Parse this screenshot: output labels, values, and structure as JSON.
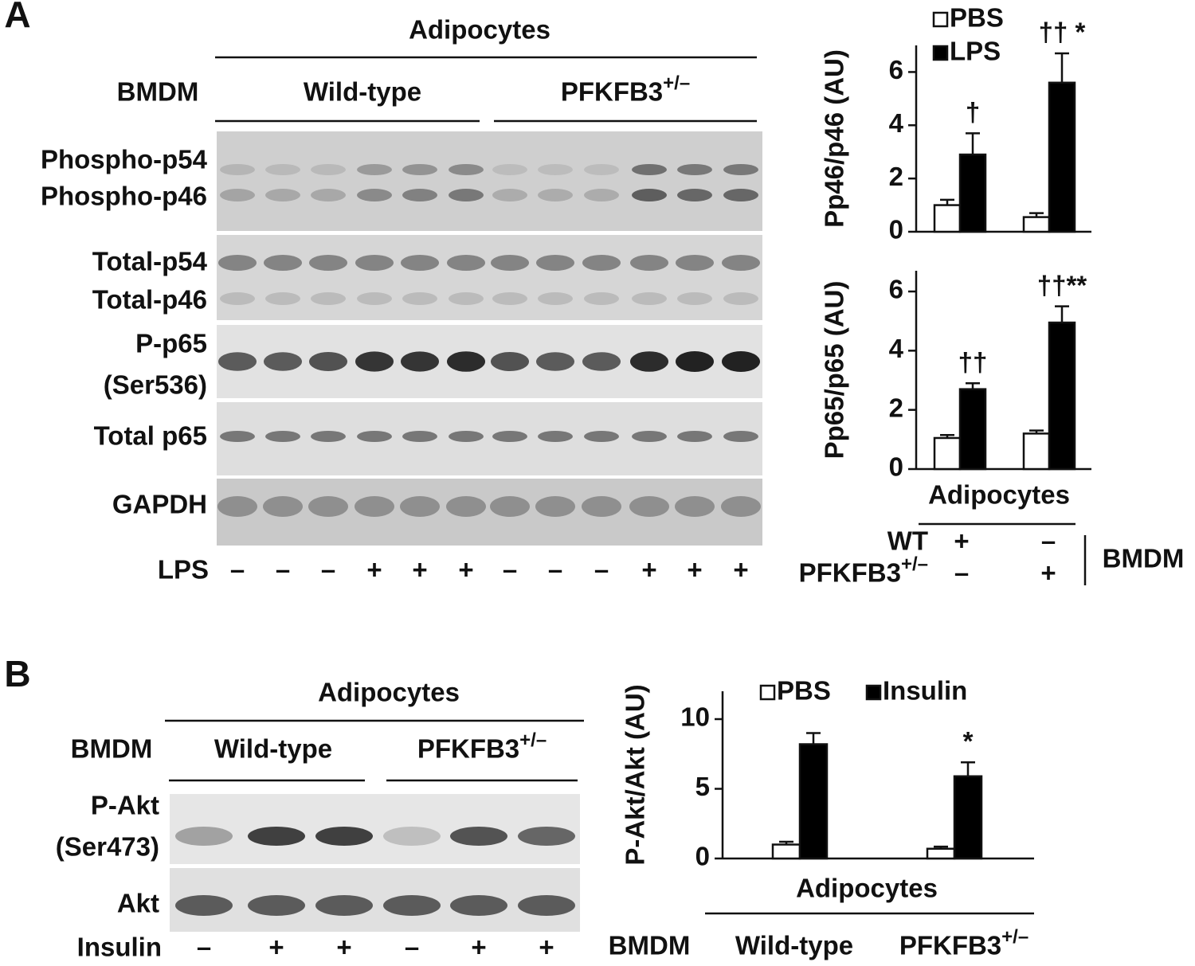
{
  "panel_a": {
    "label": "A",
    "header": "Adipocytes",
    "bmdm_label": "BMDM",
    "groups": [
      "Wild-type",
      "PFKFB3+/–"
    ],
    "rows": [
      "Phospho-p54",
      "Phospho-p46",
      "Total-p54",
      "Total-p46",
      "P-p65",
      "(Ser536)",
      "Total p65",
      "GAPDH"
    ],
    "treatment": "LPS",
    "lanes": [
      "–",
      "–",
      "–",
      "+",
      "+",
      "+",
      "–",
      "–",
      "–",
      "+",
      "+",
      "+"
    ],
    "chart_footer": {
      "header": "Adipocytes",
      "rows": [
        {
          "label": "WT",
          "signs": [
            "+",
            "–"
          ]
        },
        {
          "label": "PFKFB3+/–",
          "signs": [
            "–",
            "+"
          ]
        }
      ],
      "group_label": "BMDM"
    }
  },
  "panel_b": {
    "label": "B",
    "header": "Adipocytes",
    "bmdm_label": "BMDM",
    "groups": [
      "Wild-type",
      "PFKFB3+/–"
    ],
    "rows": [
      "P-Akt",
      "(Ser473)",
      "Akt"
    ],
    "treatment": "Insulin",
    "lanes": [
      "–",
      "+",
      "+",
      "–",
      "+",
      "+"
    ],
    "chart_footer": {
      "header": "Adipocytes",
      "group_label": "BMDM"
    }
  },
  "chart_data": [
    {
      "type": "bar",
      "y_label": "Pp46/p46 (AU)",
      "categories": [
        null,
        null
      ],
      "series": [
        {
          "name": "PBS",
          "color": "#ffffff",
          "values": [
            1.0,
            0.55
          ],
          "errors": [
            0.2,
            0.15
          ]
        },
        {
          "name": "LPS",
          "color": "#000000",
          "values": [
            2.9,
            5.6
          ],
          "errors": [
            0.8,
            1.1
          ],
          "annotations": [
            "†",
            "†† *"
          ]
        }
      ],
      "ylim": [
        0,
        7
      ],
      "yticks": [
        0,
        2,
        4,
        6
      ]
    },
    {
      "type": "bar",
      "y_label": "Pp65/p65 (AU)",
      "categories": [
        null,
        null
      ],
      "series": [
        {
          "name": "PBS",
          "color": "#ffffff",
          "values": [
            1.05,
            1.2
          ],
          "errors": [
            0.1,
            0.1
          ]
        },
        {
          "name": "LPS",
          "color": "#000000",
          "values": [
            2.7,
            4.95
          ],
          "errors": [
            0.2,
            0.55
          ],
          "annotations": [
            "††",
            "††**"
          ]
        }
      ],
      "ylim": [
        0,
        6.7
      ],
      "yticks": [
        0,
        2,
        4,
        6
      ]
    },
    {
      "type": "bar",
      "y_label": "P-Akt/Akt (AU)",
      "categories": [
        "Wild-type",
        "PFKFB3+/–"
      ],
      "series": [
        {
          "name": "PBS",
          "color": "#ffffff",
          "values": [
            1.0,
            0.7
          ],
          "errors": [
            0.2,
            0.15
          ]
        },
        {
          "name": "Insulin",
          "color": "#000000",
          "values": [
            8.2,
            5.9
          ],
          "errors": [
            0.8,
            1.0
          ],
          "annotations": [
            null,
            "*"
          ]
        }
      ],
      "ylim": [
        0,
        12
      ],
      "yticks": [
        0,
        5,
        10
      ]
    }
  ]
}
